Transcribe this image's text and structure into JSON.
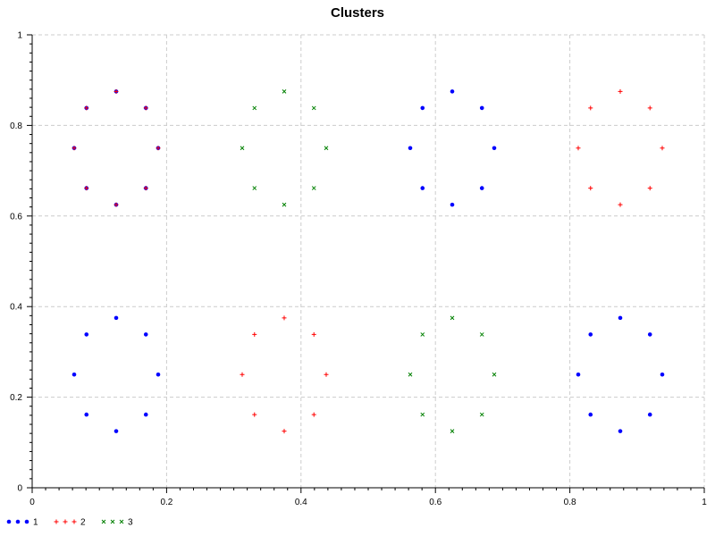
{
  "chart_data": {
    "type": "scatter",
    "title": "Clusters",
    "xlabel": "",
    "ylabel": "",
    "xlim": [
      0,
      1
    ],
    "ylim": [
      0,
      1
    ],
    "x_ticks": [
      "0",
      "0.2",
      "0.4",
      "0.6",
      "0.8",
      "1"
    ],
    "y_ticks": [
      "0",
      "0.2",
      "0.4",
      "0.6",
      "0.8",
      "1"
    ],
    "grid": true,
    "legend_position": "bottom-left",
    "series": [
      {
        "name": "1",
        "marker": "circle",
        "color": "#0000ff",
        "points": [
          [
            0.1875,
            0.75
          ],
          [
            0.1692,
            0.8384
          ],
          [
            0.125,
            0.875
          ],
          [
            0.0808,
            0.8384
          ],
          [
            0.0625,
            0.75
          ],
          [
            0.0808,
            0.6616
          ],
          [
            0.125,
            0.625
          ],
          [
            0.1692,
            0.6616
          ],
          [
            0.1875,
            0.25
          ],
          [
            0.1692,
            0.3384
          ],
          [
            0.125,
            0.375
          ],
          [
            0.0808,
            0.3384
          ],
          [
            0.0625,
            0.25
          ],
          [
            0.0808,
            0.1616
          ],
          [
            0.125,
            0.125
          ],
          [
            0.1692,
            0.1616
          ],
          [
            0.6875,
            0.75
          ],
          [
            0.6692,
            0.8384
          ],
          [
            0.625,
            0.875
          ],
          [
            0.5808,
            0.8384
          ],
          [
            0.5625,
            0.75
          ],
          [
            0.5808,
            0.6616
          ],
          [
            0.625,
            0.625
          ],
          [
            0.6692,
            0.6616
          ],
          [
            0.9375,
            0.25
          ],
          [
            0.9192,
            0.3384
          ],
          [
            0.875,
            0.375
          ],
          [
            0.8308,
            0.3384
          ],
          [
            0.8125,
            0.25
          ],
          [
            0.8308,
            0.1616
          ],
          [
            0.875,
            0.125
          ],
          [
            0.9192,
            0.1616
          ]
        ]
      },
      {
        "name": "2",
        "marker": "plus",
        "color": "#ff0000",
        "points": [
          [
            0.1875,
            0.75
          ],
          [
            0.1692,
            0.8384
          ],
          [
            0.125,
            0.875
          ],
          [
            0.0808,
            0.8384
          ],
          [
            0.0625,
            0.75
          ],
          [
            0.0808,
            0.6616
          ],
          [
            0.125,
            0.625
          ],
          [
            0.1692,
            0.6616
          ],
          [
            0.9375,
            0.75
          ],
          [
            0.9192,
            0.8384
          ],
          [
            0.875,
            0.875
          ],
          [
            0.8308,
            0.8384
          ],
          [
            0.8125,
            0.75
          ],
          [
            0.8308,
            0.6616
          ],
          [
            0.875,
            0.625
          ],
          [
            0.9192,
            0.6616
          ],
          [
            0.4375,
            0.25
          ],
          [
            0.4192,
            0.3384
          ],
          [
            0.375,
            0.375
          ],
          [
            0.3308,
            0.3384
          ],
          [
            0.3125,
            0.25
          ],
          [
            0.3308,
            0.1616
          ],
          [
            0.375,
            0.125
          ],
          [
            0.4192,
            0.1616
          ]
        ]
      },
      {
        "name": "3",
        "marker": "cross",
        "color": "#008000",
        "points": [
          [
            0.4375,
            0.75
          ],
          [
            0.4192,
            0.8384
          ],
          [
            0.375,
            0.875
          ],
          [
            0.3308,
            0.8384
          ],
          [
            0.3125,
            0.75
          ],
          [
            0.3308,
            0.6616
          ],
          [
            0.375,
            0.625
          ],
          [
            0.4192,
            0.6616
          ],
          [
            0.6875,
            0.25
          ],
          [
            0.6692,
            0.3384
          ],
          [
            0.625,
            0.375
          ],
          [
            0.5808,
            0.3384
          ],
          [
            0.5625,
            0.25
          ],
          [
            0.5808,
            0.1616
          ],
          [
            0.625,
            0.125
          ],
          [
            0.6692,
            0.1616
          ]
        ]
      }
    ]
  }
}
